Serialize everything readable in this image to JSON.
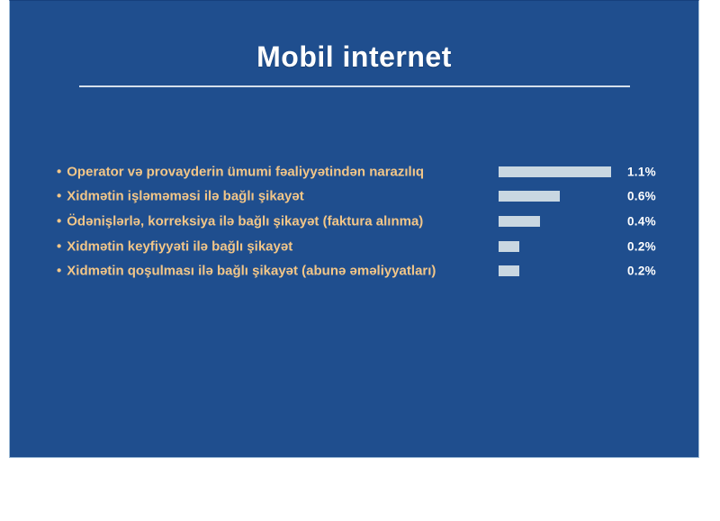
{
  "slide": {
    "title": "Mobil internet",
    "background_color": "#1F4E8E",
    "border_color": "#9FBBD6",
    "divider_color": "#E9EFF5",
    "category_text_color": "#F2C688",
    "bar_color": "#C9D7E1",
    "value_text_color": "#FFFFFF",
    "bullet_glyph": "•"
  },
  "chart_data": {
    "type": "bar",
    "orientation": "horizontal",
    "title": "Mobil internet",
    "categories": [
      "Operator və provayderin ümumi fəaliyyətindən narazılıq",
      "Xidmətin işləməməsi ilə bağlı şikayət",
      "Ödənişlərlə, korreksiya ilə bağlı şikayət (faktura alınma)",
      "Xidmətin keyfiyyəti ilə bağlı şikayət",
      "Xidmətin qoşulması ilə bağlı şikayət (abunə əməliyyatları)"
    ],
    "values": [
      1.1,
      0.6,
      0.4,
      0.2,
      0.2
    ],
    "value_labels": [
      "1.1%",
      "0.6%",
      "0.4%",
      "0.2%",
      "0.2%"
    ],
    "unit": "%",
    "xlim": [
      0,
      1.1
    ],
    "xlabel": "",
    "ylabel": "",
    "legend": false,
    "gridlines": false,
    "axes_visible": false
  }
}
